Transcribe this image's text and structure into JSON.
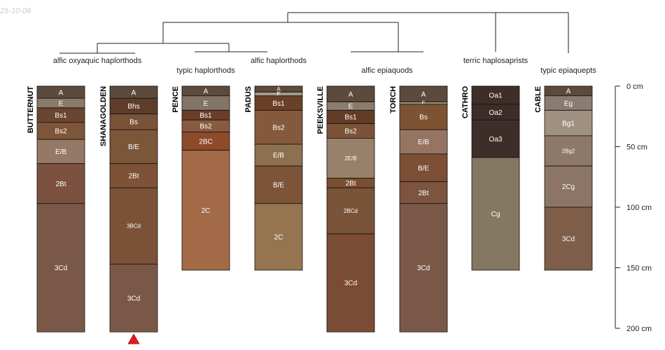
{
  "stamp": "25-10-08",
  "chart_data": {
    "type": "soil-profile-sketch",
    "depth_unit": "cm",
    "depth_range": [
      0,
      200
    ],
    "depth_ticks": [
      {
        "value": 0,
        "label": "0 cm"
      },
      {
        "value": 50,
        "label": "50 cm"
      },
      {
        "value": 100,
        "label": "100 cm"
      },
      {
        "value": 150,
        "label": "150 cm"
      },
      {
        "value": 200,
        "label": "200 cm"
      }
    ],
    "groups": [
      {
        "label": "alfic oxyaquic haplorthods",
        "profiles": [
          0,
          1
        ],
        "row": 1
      },
      {
        "label": "typic haplorthods",
        "profiles": [
          2
        ],
        "row": 2
      },
      {
        "label": "alfic haplorthods",
        "profiles": [
          3
        ],
        "row": 1
      },
      {
        "label": "alfic epiaquods",
        "profiles": [
          4,
          5
        ],
        "row": 2
      },
      {
        "label": "terric haplosaprists",
        "profiles": [
          6
        ],
        "row": 1
      },
      {
        "label": "typic epiaquepts",
        "profiles": [
          7
        ],
        "row": 2
      }
    ],
    "profiles": [
      {
        "name": "BUTTERNUT",
        "marker": false,
        "horizons": [
          {
            "name": "A",
            "top": 0,
            "bottom": 10,
            "color": "#5c4a3c"
          },
          {
            "name": "E",
            "top": 10,
            "bottom": 18,
            "color": "#8a7a68"
          },
          {
            "name": "Bs1",
            "top": 18,
            "bottom": 30,
            "color": "#6a4530"
          },
          {
            "name": "Bs2",
            "top": 30,
            "bottom": 44,
            "color": "#7e5538"
          },
          {
            "name": "E/B",
            "top": 44,
            "bottom": 64,
            "color": "#957865"
          },
          {
            "name": "2Bt",
            "top": 64,
            "bottom": 97,
            "color": "#7c5140"
          },
          {
            "name": "3Cd",
            "top": 97,
            "bottom": 203,
            "color": "#7a5848"
          }
        ]
      },
      {
        "name": "SHANAGOLDEN",
        "marker": true,
        "horizons": [
          {
            "name": "A",
            "top": 0,
            "bottom": 10,
            "color": "#5c4a3c"
          },
          {
            "name": "Bhs",
            "top": 10,
            "bottom": 23,
            "color": "#5e3c2a"
          },
          {
            "name": "Bs",
            "top": 23,
            "bottom": 36,
            "color": "#7a5238"
          },
          {
            "name": "B/E",
            "top": 36,
            "bottom": 64,
            "color": "#7c5638"
          },
          {
            "name": "2Bt",
            "top": 64,
            "bottom": 84,
            "color": "#7d5236"
          },
          {
            "name": "3BCd",
            "top": 84,
            "bottom": 147,
            "color": "#7b5238"
          },
          {
            "name": "3Cd",
            "top": 147,
            "bottom": 203,
            "color": "#7a5848"
          }
        ]
      },
      {
        "name": "PENCE",
        "marker": false,
        "horizons": [
          {
            "name": "A",
            "top": 0,
            "bottom": 8,
            "color": "#5c4a3c"
          },
          {
            "name": "E",
            "top": 8,
            "bottom": 20,
            "color": "#827466"
          },
          {
            "name": "Bs1",
            "top": 20,
            "bottom": 28,
            "color": "#6a3e28"
          },
          {
            "name": "Bs2",
            "top": 28,
            "bottom": 38,
            "color": "#8a5a40"
          },
          {
            "name": "2BC",
            "top": 38,
            "bottom": 53,
            "color": "#8e4b2a"
          },
          {
            "name": "2C",
            "top": 53,
            "bottom": 152,
            "color": "#a36a48"
          }
        ]
      },
      {
        "name": "PADUS",
        "marker": false,
        "horizons": [
          {
            "name": "A",
            "top": 0,
            "bottom": 5,
            "color": "#5c4a3c"
          },
          {
            "name": "E",
            "top": 5,
            "bottom": 8,
            "color": "#a89a8a"
          },
          {
            "name": "Bs1",
            "top": 8,
            "bottom": 20,
            "color": "#6a4028"
          },
          {
            "name": "Bs2",
            "top": 20,
            "bottom": 48,
            "color": "#855a3c"
          },
          {
            "name": "E/B",
            "top": 48,
            "bottom": 66,
            "color": "#8d7050"
          },
          {
            "name": "B/E",
            "top": 66,
            "bottom": 97,
            "color": "#7d5438"
          },
          {
            "name": "2C",
            "top": 97,
            "bottom": 152,
            "color": "#957550"
          }
        ]
      },
      {
        "name": "PEEKSVILLE",
        "marker": false,
        "horizons": [
          {
            "name": "A",
            "top": 0,
            "bottom": 13,
            "color": "#5c4a3c"
          },
          {
            "name": "E",
            "top": 13,
            "bottom": 20,
            "color": "#8c7c6a"
          },
          {
            "name": "Bs1",
            "top": 20,
            "bottom": 31,
            "color": "#633c28"
          },
          {
            "name": "Bs2",
            "top": 31,
            "bottom": 43,
            "color": "#7c5238"
          },
          {
            "name": "2E/B",
            "top": 43,
            "bottom": 76,
            "color": "#98806a"
          },
          {
            "name": "2Bt",
            "top": 76,
            "bottom": 84,
            "color": "#7a4e30"
          },
          {
            "name": "2BCd",
            "top": 84,
            "bottom": 122,
            "color": "#7a5438"
          },
          {
            "name": "3Cd",
            "top": 122,
            "bottom": 203,
            "color": "#7a4c36"
          }
        ]
      },
      {
        "name": "TORCH",
        "marker": false,
        "horizons": [
          {
            "name": "A",
            "top": 0,
            "bottom": 13,
            "color": "#5c4a3c"
          },
          {
            "name": "E",
            "top": 13,
            "bottom": 15,
            "color": "#9a8a78"
          },
          {
            "name": "Bs",
            "top": 15,
            "bottom": 36,
            "color": "#7c5434"
          },
          {
            "name": "E/B",
            "top": 36,
            "bottom": 56,
            "color": "#957562"
          },
          {
            "name": "B/E",
            "top": 56,
            "bottom": 79,
            "color": "#7c4e36"
          },
          {
            "name": "2Bt",
            "top": 79,
            "bottom": 97,
            "color": "#7c5440"
          },
          {
            "name": "3Cd",
            "top": 97,
            "bottom": 203,
            "color": "#7a5848"
          }
        ]
      },
      {
        "name": "CATHRO",
        "marker": false,
        "horizons": [
          {
            "name": "Oa1",
            "top": 0,
            "bottom": 15,
            "color": "#3e2e28"
          },
          {
            "name": "Oa2",
            "top": 15,
            "bottom": 28,
            "color": "#3b2e2a"
          },
          {
            "name": "Oa3",
            "top": 28,
            "bottom": 59,
            "color": "#3e2e2a"
          },
          {
            "name": "Cg",
            "top": 59,
            "bottom": 152,
            "color": "#847862"
          }
        ]
      },
      {
        "name": "CABLE",
        "marker": false,
        "horizons": [
          {
            "name": "A",
            "top": 0,
            "bottom": 8,
            "color": "#5c4a3c"
          },
          {
            "name": "Eg",
            "top": 8,
            "bottom": 20,
            "color": "#8a7c72"
          },
          {
            "name": "Bg1",
            "top": 20,
            "bottom": 41,
            "color": "#a09080"
          },
          {
            "name": "2Bg2",
            "top": 41,
            "bottom": 66,
            "color": "#8e7868"
          },
          {
            "name": "2Cg",
            "top": 66,
            "bottom": 100,
            "color": "#8d7565"
          },
          {
            "name": "3Cd",
            "top": 100,
            "bottom": 152,
            "color": "#7e5e48"
          }
        ]
      }
    ],
    "colors": {
      "boundary": "#111111",
      "marker": "#e41a1c",
      "text": "#ffffff"
    }
  }
}
